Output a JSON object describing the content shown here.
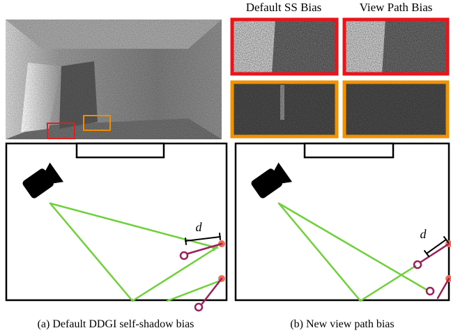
{
  "header": {
    "left": "Default SS Bias",
    "right": "View Path Bias"
  },
  "diagrams": [
    {
      "distance_label": "d"
    },
    {
      "distance_label": "d"
    }
  ],
  "captions": [
    "(a) Default DDGI self-shadow bias",
    "(b) New view path bias"
  ]
}
